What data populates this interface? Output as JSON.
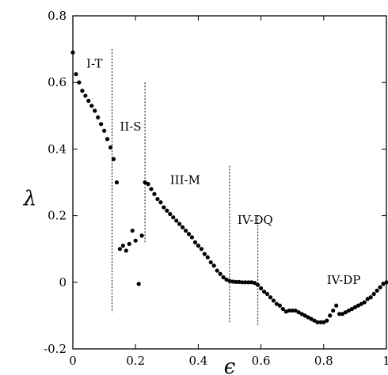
{
  "chart_data": {
    "type": "scatter",
    "xlabel": "ϵ",
    "ylabel": "λ",
    "xlim": [
      0,
      1
    ],
    "ylim": [
      -0.2,
      0.8
    ],
    "x_ticks": [
      {
        "value": 0,
        "label": "0"
      },
      {
        "value": 0.2,
        "label": "0.2"
      },
      {
        "value": 0.4,
        "label": "0.4"
      },
      {
        "value": 0.6,
        "label": "0.6"
      },
      {
        "value": 0.8,
        "label": "0.8"
      },
      {
        "value": 1,
        "label": "1"
      }
    ],
    "y_ticks": [
      {
        "value": -0.2,
        "label": "-0.2"
      },
      {
        "value": 0,
        "label": "0"
      },
      {
        "value": 0.2,
        "label": "0.2"
      },
      {
        "value": 0.4,
        "label": "0.4"
      },
      {
        "value": 0.6,
        "label": "0.6"
      },
      {
        "value": 0.8,
        "label": "0.8"
      }
    ],
    "grid": false,
    "vlines": [
      {
        "x": 0.125,
        "y_from": -0.09,
        "y_to": 0.7
      },
      {
        "x": 0.23,
        "y_from": 0.12,
        "y_to": 0.6
      },
      {
        "x": 0.5,
        "y_from": -0.12,
        "y_to": 0.35
      },
      {
        "x": 0.59,
        "y_from": -0.13,
        "y_to": 0.2
      }
    ],
    "annotations": [
      {
        "text": "I-T",
        "x": 0.043,
        "y": 0.645
      },
      {
        "text": "II-S",
        "x": 0.15,
        "y": 0.455
      },
      {
        "text": "III-M",
        "x": 0.31,
        "y": 0.295
      },
      {
        "text": "IV-DQ",
        "x": 0.525,
        "y": 0.175
      },
      {
        "text": "IV-DP",
        "x": 0.81,
        "y": -0.005
      }
    ],
    "series": [
      {
        "points": [
          [
            0.0,
            0.69
          ],
          [
            0.01,
            0.625
          ],
          [
            0.02,
            0.6
          ],
          [
            0.03,
            0.575
          ],
          [
            0.04,
            0.56
          ],
          [
            0.05,
            0.545
          ],
          [
            0.06,
            0.53
          ],
          [
            0.07,
            0.515
          ],
          [
            0.08,
            0.495
          ],
          [
            0.09,
            0.475
          ],
          [
            0.1,
            0.455
          ],
          [
            0.11,
            0.43
          ],
          [
            0.12,
            0.405
          ],
          [
            0.13,
            0.37
          ],
          [
            0.14,
            0.3
          ],
          [
            0.15,
            0.1
          ],
          [
            0.16,
            0.11
          ],
          [
            0.17,
            0.095
          ],
          [
            0.18,
            0.115
          ],
          [
            0.19,
            0.155
          ],
          [
            0.2,
            0.125
          ],
          [
            0.21,
            -0.005
          ],
          [
            0.22,
            0.14
          ],
          [
            0.23,
            0.3
          ],
          [
            0.24,
            0.295
          ],
          [
            0.25,
            0.28
          ],
          [
            0.26,
            0.265
          ],
          [
            0.27,
            0.25
          ],
          [
            0.28,
            0.24
          ],
          [
            0.29,
            0.225
          ],
          [
            0.3,
            0.215
          ],
          [
            0.31,
            0.205
          ],
          [
            0.32,
            0.195
          ],
          [
            0.33,
            0.185
          ],
          [
            0.34,
            0.175
          ],
          [
            0.35,
            0.165
          ],
          [
            0.36,
            0.155
          ],
          [
            0.37,
            0.145
          ],
          [
            0.38,
            0.135
          ],
          [
            0.39,
            0.12
          ],
          [
            0.4,
            0.11
          ],
          [
            0.41,
            0.1
          ],
          [
            0.42,
            0.085
          ],
          [
            0.43,
            0.075
          ],
          [
            0.44,
            0.06
          ],
          [
            0.45,
            0.05
          ],
          [
            0.46,
            0.035
          ],
          [
            0.47,
            0.025
          ],
          [
            0.48,
            0.015
          ],
          [
            0.49,
            0.008
          ],
          [
            0.5,
            0.004
          ],
          [
            0.51,
            0.002
          ],
          [
            0.52,
            0.001
          ],
          [
            0.53,
            0.001
          ],
          [
            0.54,
            0.0
          ],
          [
            0.55,
            0.0
          ],
          [
            0.56,
            0.0
          ],
          [
            0.57,
            0.0
          ],
          [
            0.58,
            -0.002
          ],
          [
            0.59,
            -0.008
          ],
          [
            0.6,
            -0.018
          ],
          [
            0.61,
            -0.028
          ],
          [
            0.62,
            -0.035
          ],
          [
            0.63,
            -0.045
          ],
          [
            0.64,
            -0.055
          ],
          [
            0.65,
            -0.065
          ],
          [
            0.66,
            -0.07
          ],
          [
            0.67,
            -0.08
          ],
          [
            0.68,
            -0.088
          ],
          [
            0.69,
            -0.085
          ],
          [
            0.7,
            -0.085
          ],
          [
            0.71,
            -0.085
          ],
          [
            0.72,
            -0.09
          ],
          [
            0.73,
            -0.095
          ],
          [
            0.74,
            -0.1
          ],
          [
            0.75,
            -0.105
          ],
          [
            0.76,
            -0.11
          ],
          [
            0.77,
            -0.115
          ],
          [
            0.78,
            -0.12
          ],
          [
            0.79,
            -0.12
          ],
          [
            0.8,
            -0.12
          ],
          [
            0.81,
            -0.115
          ],
          [
            0.82,
            -0.1
          ],
          [
            0.83,
            -0.085
          ],
          [
            0.84,
            -0.07
          ],
          [
            0.85,
            -0.095
          ],
          [
            0.86,
            -0.095
          ],
          [
            0.87,
            -0.09
          ],
          [
            0.88,
            -0.085
          ],
          [
            0.89,
            -0.08
          ],
          [
            0.9,
            -0.075
          ],
          [
            0.91,
            -0.07
          ],
          [
            0.92,
            -0.065
          ],
          [
            0.93,
            -0.06
          ],
          [
            0.94,
            -0.05
          ],
          [
            0.95,
            -0.045
          ],
          [
            0.96,
            -0.035
          ],
          [
            0.97,
            -0.025
          ],
          [
            0.98,
            -0.015
          ],
          [
            0.99,
            -0.005
          ],
          [
            1.0,
            0.0
          ]
        ]
      }
    ]
  }
}
